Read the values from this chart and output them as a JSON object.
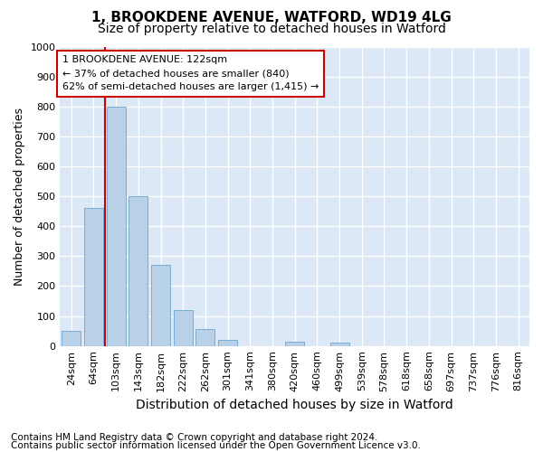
{
  "title1": "1, BROOKDENE AVENUE, WATFORD, WD19 4LG",
  "title2": "Size of property relative to detached houses in Watford",
  "xlabel": "Distribution of detached houses by size in Watford",
  "ylabel": "Number of detached properties",
  "categories": [
    "24sqm",
    "64sqm",
    "103sqm",
    "143sqm",
    "182sqm",
    "222sqm",
    "262sqm",
    "301sqm",
    "341sqm",
    "380sqm",
    "420sqm",
    "460sqm",
    "499sqm",
    "539sqm",
    "578sqm",
    "618sqm",
    "658sqm",
    "697sqm",
    "737sqm",
    "776sqm",
    "816sqm"
  ],
  "values": [
    50,
    460,
    800,
    500,
    270,
    120,
    55,
    20,
    0,
    0,
    15,
    0,
    10,
    0,
    0,
    0,
    0,
    0,
    0,
    0,
    0
  ],
  "bar_color": "#b8d0e8",
  "bar_edge_color": "#7aadd4",
  "vline_x_index": 2,
  "vline_color": "#cc0000",
  "annotation_text": "1 BROOKDENE AVENUE: 122sqm\n← 37% of detached houses are smaller (840)\n62% of semi-detached houses are larger (1,415) →",
  "annotation_box_facecolor": "#ffffff",
  "annotation_box_edgecolor": "#cc0000",
  "ylim": [
    0,
    1000
  ],
  "yticks": [
    0,
    100,
    200,
    300,
    400,
    500,
    600,
    700,
    800,
    900,
    1000
  ],
  "footnote1": "Contains HM Land Registry data © Crown copyright and database right 2024.",
  "footnote2": "Contains public sector information licensed under the Open Government Licence v3.0.",
  "fig_bg_color": "#ffffff",
  "plot_bg_color": "#dce8f5",
  "grid_color": "#ffffff",
  "title1_fontsize": 11,
  "title2_fontsize": 10,
  "xlabel_fontsize": 10,
  "ylabel_fontsize": 9,
  "tick_fontsize": 8,
  "annot_fontsize": 8,
  "footnote_fontsize": 7.5
}
